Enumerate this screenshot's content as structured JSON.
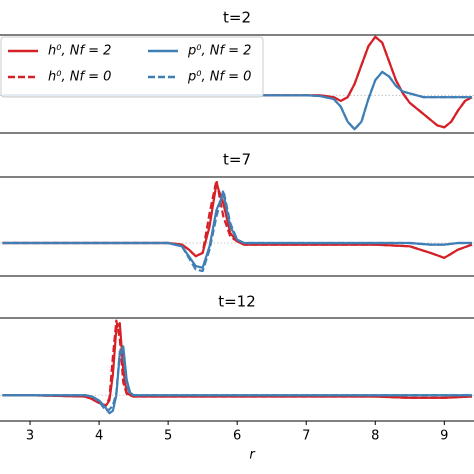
{
  "chart_data": [
    {
      "type": "line",
      "title": "t=2",
      "x": [
        2.6,
        3,
        4,
        5,
        6,
        7,
        7.2,
        7.4,
        7.5,
        7.6,
        7.7,
        7.8,
        7.9,
        8.0,
        8.1,
        8.2,
        8.3,
        8.4,
        8.5,
        8.6,
        8.7,
        8.8,
        8.9,
        9.0,
        9.1,
        9.2,
        9.3,
        9.4
      ],
      "series": [
        {
          "name": "h⁰,  Nf = 2",
          "color": "#d62027",
          "dashed": false,
          "values": [
            0,
            0,
            0,
            0,
            0,
            0,
            0,
            -0.05,
            -0.15,
            -0.05,
            0.3,
            0.8,
            1.3,
            1.55,
            1.4,
            0.9,
            0.4,
            0.05,
            -0.2,
            -0.35,
            -0.5,
            -0.65,
            -0.8,
            -0.85,
            -0.7,
            -0.4,
            -0.15,
            -0.05
          ]
        },
        {
          "name": "h⁰,  Nf = 0",
          "color": "#d62027",
          "dashed": true,
          "values": [
            0,
            0,
            0,
            0,
            0,
            0,
            0,
            -0.05,
            -0.15,
            -0.05,
            0.3,
            0.8,
            1.3,
            1.55,
            1.4,
            0.9,
            0.4,
            0.05,
            -0.2,
            -0.35,
            -0.5,
            -0.65,
            -0.8,
            -0.85,
            -0.7,
            -0.4,
            -0.15,
            -0.05
          ]
        },
        {
          "name": "p⁰,  Nf = 2",
          "color": "#3f7fb5",
          "dashed": false,
          "values": [
            0,
            0,
            0,
            0,
            0,
            0,
            -0.02,
            -0.1,
            -0.3,
            -0.7,
            -0.9,
            -0.7,
            -0.1,
            0.4,
            0.62,
            0.5,
            0.25,
            0.1,
            0.05,
            0,
            -0.05,
            -0.05,
            -0.05,
            -0.05,
            -0.05,
            -0.05,
            -0.05,
            -0.05
          ]
        },
        {
          "name": "p⁰,  Nf = 0",
          "color": "#3f7fb5",
          "dashed": true,
          "values": [
            0,
            0,
            0,
            0,
            0,
            0,
            -0.02,
            -0.1,
            -0.3,
            -0.7,
            -0.9,
            -0.7,
            -0.1,
            0.4,
            0.62,
            0.5,
            0.25,
            0.1,
            0.05,
            0,
            -0.05,
            -0.05,
            -0.05,
            -0.05,
            -0.05,
            -0.05,
            -0.05,
            -0.05
          ]
        }
      ],
      "xlim": [
        2.565,
        9.43
      ],
      "ylim": [
        -1,
        1.6
      ],
      "legend": "upper left"
    },
    {
      "type": "line",
      "title": "t=7",
      "x": [
        2.6,
        3,
        4,
        5,
        5.2,
        5.3,
        5.4,
        5.5,
        5.6,
        5.7,
        5.8,
        5.9,
        6.0,
        6.1,
        6.2,
        6.5,
        7,
        7.5,
        8,
        8.5,
        8.8,
        9.0,
        9.2,
        9.4
      ],
      "series": [
        {
          "color": "#d62027",
          "dashed": false,
          "values": [
            0,
            0,
            0,
            0,
            -0.05,
            -0.2,
            -0.4,
            -0.3,
            0.5,
            1.8,
            1.2,
            0.3,
            0.05,
            -0.05,
            -0.05,
            -0.05,
            -0.05,
            -0.05,
            -0.05,
            -0.1,
            -0.3,
            -0.45,
            -0.2,
            -0.05
          ]
        },
        {
          "color": "#d62027",
          "dashed": true,
          "values": [
            0,
            0,
            0,
            0,
            -0.05,
            -0.2,
            -0.4,
            -0.3,
            0.9,
            1.9,
            0.8,
            0.2,
            0.05,
            -0.05,
            -0.05,
            -0.05,
            -0.05,
            -0.05,
            -0.05,
            -0.1,
            -0.3,
            -0.45,
            -0.2,
            -0.05
          ]
        },
        {
          "color": "#3f7fb5",
          "dashed": false,
          "values": [
            0,
            0,
            0,
            0,
            -0.1,
            -0.4,
            -0.7,
            -0.75,
            -0.1,
            1.0,
            1.5,
            0.5,
            0.1,
            0,
            0,
            0,
            0,
            0,
            0,
            0,
            -0.05,
            -0.05,
            0,
            0
          ]
        },
        {
          "color": "#3f7fb5",
          "dashed": true,
          "values": [
            0,
            0,
            0,
            0,
            -0.1,
            -0.45,
            -0.8,
            -0.85,
            -0.2,
            0.8,
            1.6,
            0.6,
            0.1,
            0,
            0,
            0,
            0,
            0,
            0,
            0,
            -0.05,
            -0.05,
            0,
            0
          ]
        }
      ],
      "xlim": [
        2.565,
        9.43
      ],
      "ylim": [
        -1,
        2
      ]
    },
    {
      "type": "line",
      "title": "t=12",
      "x": [
        2.6,
        3,
        3.8,
        3.9,
        4.0,
        4.1,
        4.15,
        4.2,
        4.25,
        4.3,
        4.35,
        4.4,
        4.45,
        4.5,
        5,
        6,
        7,
        8,
        8.5,
        9,
        9.4
      ],
      "series": [
        {
          "color": "#d62027",
          "dashed": false,
          "values": [
            0,
            0,
            -0.05,
            -0.15,
            -0.3,
            -0.4,
            -0.2,
            0.8,
            2.6,
            2.8,
            1.0,
            0.1,
            0,
            -0.05,
            -0.05,
            -0.05,
            -0.05,
            -0.05,
            -0.1,
            -0.1,
            -0.05
          ]
        },
        {
          "color": "#d62027",
          "dashed": true,
          "values": [
            0,
            0,
            -0.05,
            -0.15,
            -0.3,
            -0.4,
            -0.1,
            1.5,
            2.9,
            2.2,
            0.5,
            0.05,
            0,
            -0.05,
            -0.05,
            -0.05,
            -0.05,
            -0.05,
            -0.1,
            -0.1,
            -0.05
          ]
        },
        {
          "color": "#3f7fb5",
          "dashed": false,
          "values": [
            0,
            0,
            0,
            -0.05,
            -0.2,
            -0.5,
            -0.7,
            -0.6,
            0,
            1.6,
            1.9,
            0.6,
            0.1,
            0,
            0,
            0,
            0,
            0,
            0,
            0,
            0
          ]
        },
        {
          "color": "#3f7fb5",
          "dashed": true,
          "values": [
            0,
            0,
            0,
            -0.05,
            -0.25,
            -0.6,
            -0.55,
            -0.4,
            0.1,
            1.7,
            1.6,
            0.4,
            0.05,
            0,
            0,
            0,
            0,
            0,
            0,
            0,
            0
          ]
        }
      ],
      "xlim": [
        2.565,
        9.43
      ],
      "ylim": [
        -1,
        3
      ],
      "xticks": [
        3,
        4,
        5,
        6,
        7,
        8,
        9
      ],
      "xlabel": "r"
    }
  ]
}
